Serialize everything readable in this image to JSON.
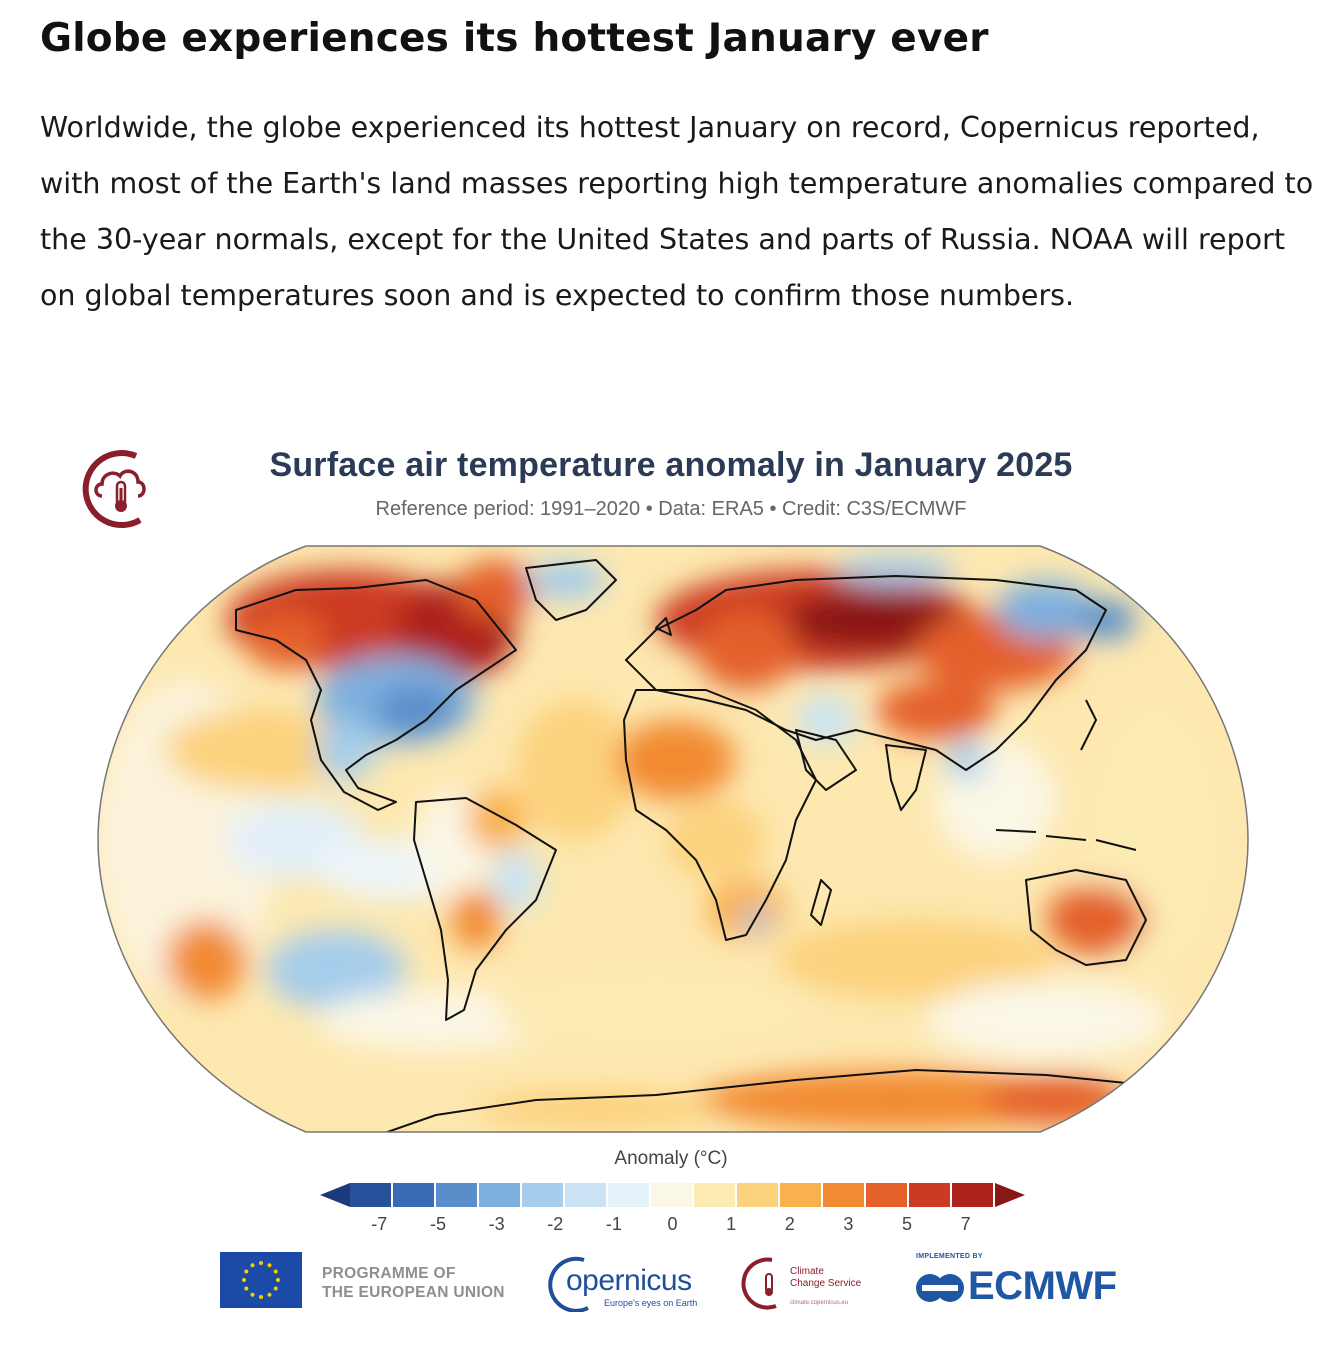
{
  "article": {
    "headline": "Globe experiences its hottest January ever",
    "paragraph": "Worldwide, the globe experienced its hottest January on record, Copernicus reported, with most of the Earth's land masses reporting high temperature anomalies compared to the 30-year normals, except for the United States and parts of Russia. NOAA will report on global temperatures soon and is expected to confirm those numbers."
  },
  "figure": {
    "title": "Surface air temperature anomaly in January 2025",
    "subtitle": "Reference period: 1991–2020 • Data: ERA5 • Credit: C3S/ECMWF",
    "colorbar_title": "Anomaly (°C)",
    "colorbar_ticks": [
      "-7",
      "-5",
      "-3",
      "-2",
      "-1",
      "0",
      "1",
      "2",
      "3",
      "5",
      "7"
    ],
    "colorbar_colors": [
      "#1b3a7a",
      "#26529c",
      "#3a6cb5",
      "#5a8ecb",
      "#7eb0de",
      "#a6cdeb",
      "#c9e3f4",
      "#e6f2fa",
      "#fbf7e6",
      "#fdebb4",
      "#fcd27d",
      "#f9b04f",
      "#f28a33",
      "#e4612a",
      "#cc3a22",
      "#ad231c",
      "#8a1717"
    ],
    "map_projection": "Robinson"
  },
  "partners": {
    "eu_line1": "PROGRAMME OF",
    "eu_line2": "THE EUROPEAN UNION",
    "copernicus_word": "opernicus",
    "copernicus_tagline": "Europe's eyes on Earth",
    "ccs_line1": "Climate",
    "ccs_line2": "Change Service",
    "ccs_url": "climate.copernicus.eu",
    "ecmwf_implemented": "IMPLEMENTED BY",
    "ecmwf_word": "ECMWF"
  },
  "colors": {
    "title_navy": "#2b3a55",
    "c3s_maroon": "#8a1f2b",
    "copernicus_blue": "#1f4f9c",
    "ecmwf_blue": "#1f57a4",
    "eu_blue": "#1c4aa8",
    "eu_star": "#f5d000"
  }
}
